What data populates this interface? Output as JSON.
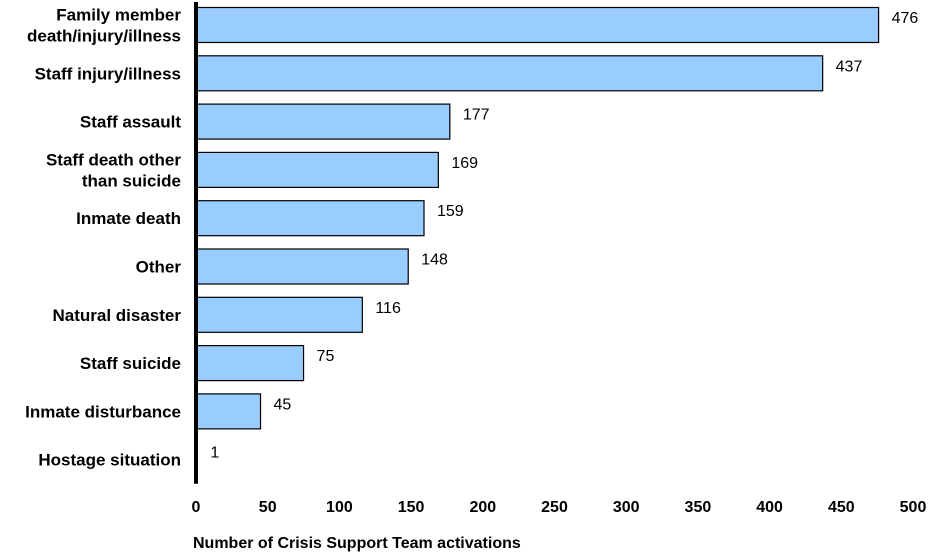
{
  "chart_data": {
    "type": "bar",
    "orientation": "horizontal",
    "categories": [
      "Family member death/injury/illness",
      "Staff injury/illness",
      "Staff assault",
      "Staff death other than suicide",
      "Inmate death",
      "Other",
      "Natural disaster",
      "Staff suicide",
      "Inmate disturbance",
      "Hostage situation"
    ],
    "category_lines": [
      [
        "Family member",
        "death/injury/illness"
      ],
      [
        "Staff injury/illness"
      ],
      [
        "Staff assault"
      ],
      [
        "Staff death other",
        "than suicide"
      ],
      [
        "Inmate death"
      ],
      [
        "Other"
      ],
      [
        "Natural disaster"
      ],
      [
        "Staff suicide"
      ],
      [
        "Inmate disturbance"
      ],
      [
        "Hostage situation"
      ]
    ],
    "values": [
      476,
      437,
      177,
      169,
      159,
      148,
      116,
      75,
      45,
      1
    ],
    "xlabel": "Number of Crisis Support Team activations",
    "ylabel": "",
    "title": "",
    "xlim": [
      0,
      500
    ],
    "xticks": [
      0,
      50,
      100,
      150,
      200,
      250,
      300,
      350,
      400,
      450,
      500
    ],
    "grid": false,
    "legend": "none",
    "bar_color": "#99ccff",
    "bar_edge_color": "#000000"
  }
}
